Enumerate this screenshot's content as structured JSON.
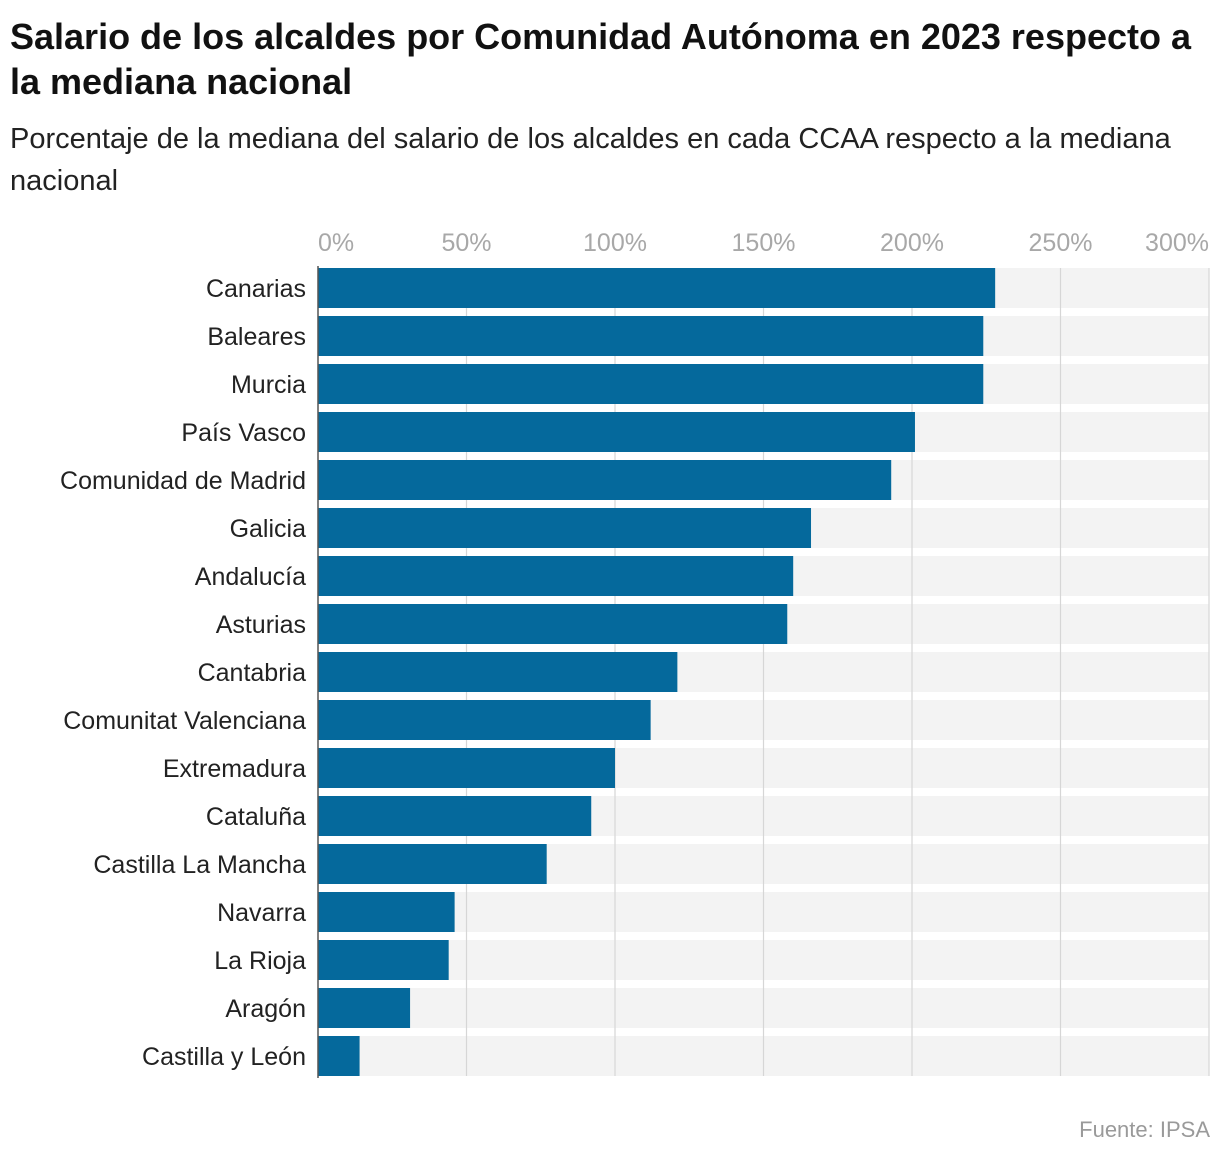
{
  "title": "Salario de los alcaldes por Comunidad Autónoma en 2023 respecto a la mediana nacional",
  "subtitle": "Porcentaje de la mediana del salario de los alcaldes en cada CCAA respecto a la mediana nacional",
  "source": "Fuente: IPSA",
  "colors": {
    "bar": "#05699c",
    "track": "#f3f3f3",
    "grid": "#d6d6d6",
    "tick": "#a8a8a8",
    "label": "#222222"
  },
  "chart_data": {
    "type": "bar",
    "orientation": "horizontal",
    "categories": [
      "Canarias",
      "Baleares",
      "Murcia",
      "País Vasco",
      "Comunidad de Madrid",
      "Galicia",
      "Andalucía",
      "Asturias",
      "Cantabria",
      "Comunitat Valenciana",
      "Extremadura",
      "Cataluña",
      "Castilla La Mancha",
      "Navarra",
      "La Rioja",
      "Aragón",
      "Castilla y León"
    ],
    "values": [
      228,
      224,
      224,
      201,
      193,
      166,
      160,
      158,
      121,
      112,
      100,
      92,
      77,
      46,
      44,
      31,
      14
    ],
    "unit": "%",
    "xlim": [
      0,
      300
    ],
    "ticks": [
      0,
      50,
      100,
      150,
      200,
      250,
      300
    ],
    "tick_labels": [
      "0%",
      "50%",
      "100%",
      "150%",
      "200%",
      "250%",
      "300%"
    ],
    "grid": true,
    "axis_position": "top"
  }
}
